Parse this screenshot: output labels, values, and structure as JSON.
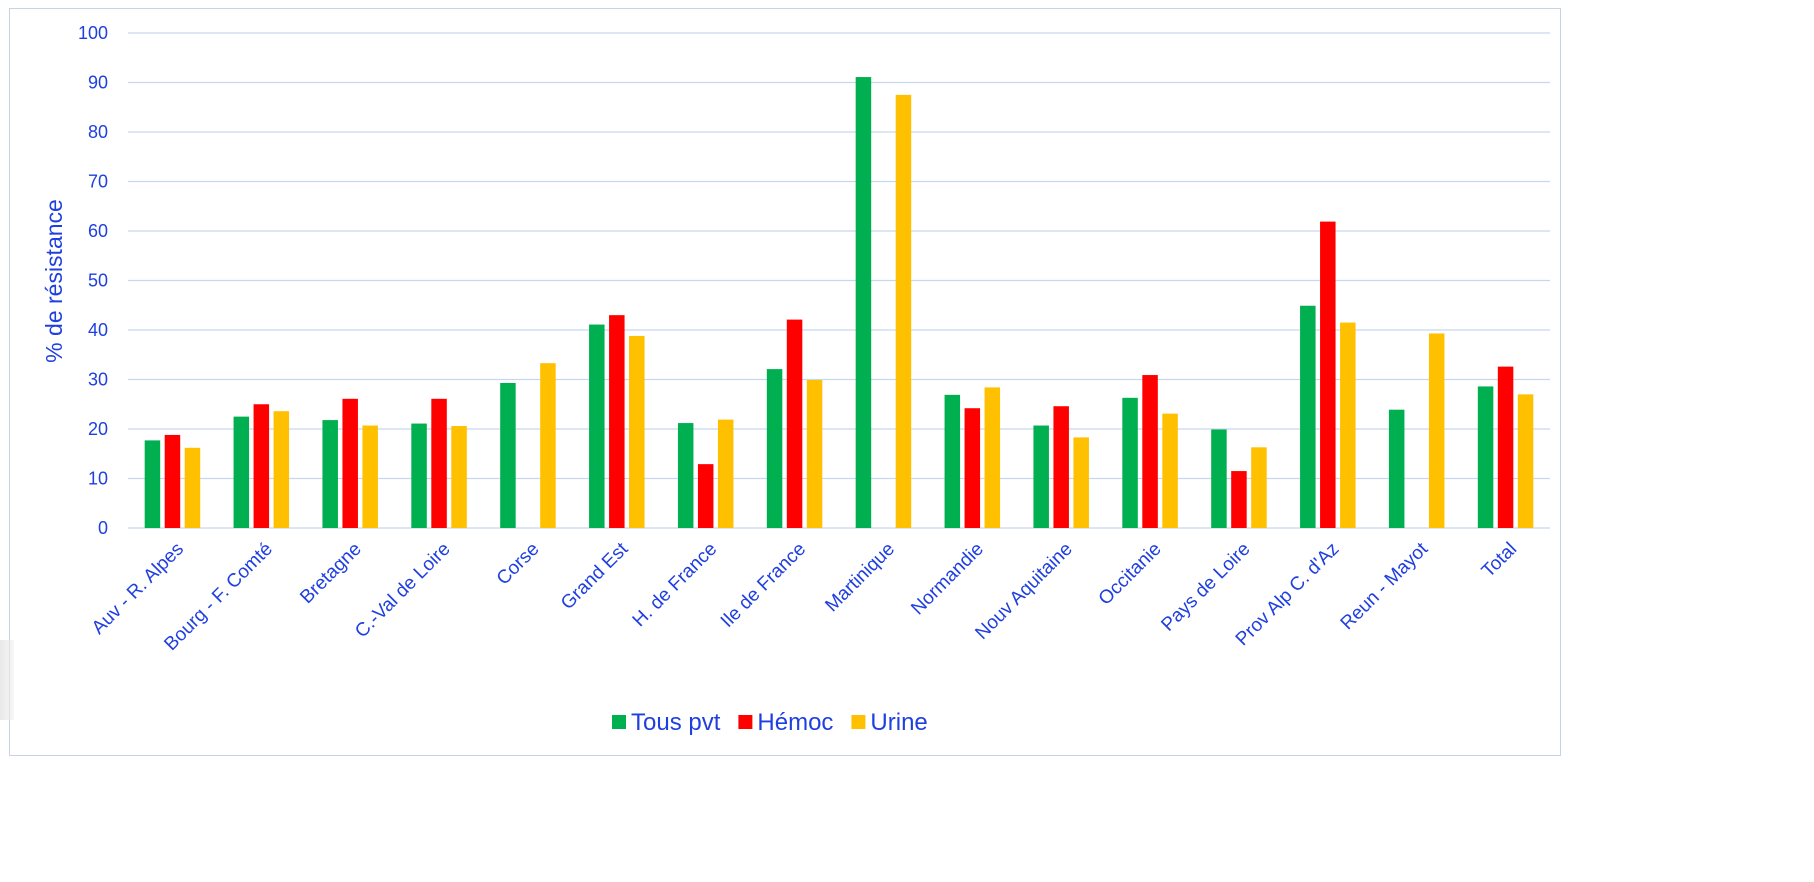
{
  "chart_data": {
    "type": "bar",
    "title": "",
    "xlabel": "",
    "ylabel": "% de résistance",
    "ylim": [
      0,
      100
    ],
    "yticks": [
      0,
      10,
      20,
      30,
      40,
      50,
      60,
      70,
      80,
      90,
      100
    ],
    "grid": true,
    "legend_position": "bottom",
    "categories": [
      "Auv - R. Alpes",
      "Bourg - F. Comté",
      "Bretagne",
      "C.-Val de Loire",
      "Corse",
      "Grand Est",
      "H. de France",
      "Ile de France",
      "Martinique",
      "Normandie",
      "Nouv Aquitaine",
      "Occitanie",
      "Pays de Loire",
      "Prov Alp C. d'Az",
      "Reun - Mayot",
      "Total"
    ],
    "series": [
      {
        "name": "Tous pvt",
        "color": "#00b050",
        "values": [
          17.7,
          22.5,
          21.8,
          21.1,
          29.3,
          41.1,
          21.2,
          32.1,
          91.1,
          26.9,
          20.7,
          26.3,
          19.9,
          44.9,
          23.9,
          28.6
        ]
      },
      {
        "name": "Hémoc",
        "color": "#ff0000",
        "values": [
          18.8,
          25.0,
          26.1,
          26.1,
          null,
          43.0,
          12.9,
          42.1,
          null,
          24.2,
          24.6,
          30.9,
          11.5,
          61.9,
          null,
          32.6
        ]
      },
      {
        "name": "Urine",
        "color": "#ffc000",
        "values": [
          16.2,
          23.6,
          20.7,
          20.6,
          33.3,
          38.8,
          21.9,
          29.9,
          87.5,
          28.4,
          18.3,
          23.1,
          16.3,
          41.5,
          39.3,
          27.0
        ]
      }
    ]
  },
  "colors": {
    "axis_text": "#1f3fe0",
    "gridline": "#c6d8ef",
    "frame_border": "#c8d3e3"
  }
}
